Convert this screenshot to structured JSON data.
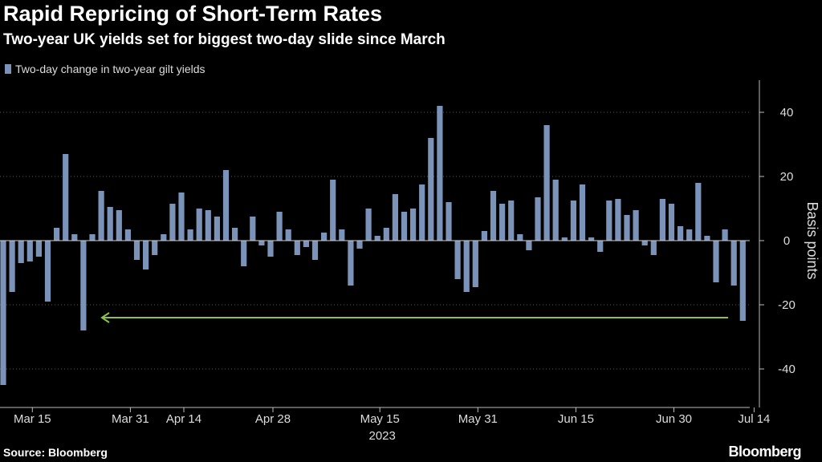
{
  "header": {
    "title": "Rapid Repricing of Short-Term Rates",
    "subtitle": "Two-year UK yields set for biggest two-day slide since March"
  },
  "footer": {
    "source": "Source: Bloomberg",
    "brand": "Bloomberg"
  },
  "chart_data": {
    "type": "bar",
    "title": "Rapid Repricing of Short-Term Rates",
    "subtitle": "Two-year UK yields set for biggest two-day slide since March",
    "series": [
      {
        "name": "Two-day change in two-year gilt yields",
        "color": "#7b93b9",
        "values": [
          -45,
          -16,
          -7,
          -6.5,
          -5,
          -19,
          4,
          27,
          2,
          -28,
          2,
          15.5,
          10.5,
          9.5,
          3.5,
          -6,
          -9,
          -4.5,
          2,
          11.5,
          15,
          3.5,
          10,
          9.5,
          7.5,
          22,
          4,
          -8,
          7.5,
          -1.5,
          -5,
          9,
          3.5,
          -4.5,
          -2,
          -6,
          2.5,
          19,
          3.5,
          -14,
          -2.5,
          10,
          1.5,
          4,
          14.5,
          9,
          10,
          17.5,
          32,
          42,
          12,
          -12,
          -16,
          -14.5,
          3,
          15.5,
          11.5,
          12.5,
          2,
          -3,
          13.5,
          36,
          19,
          1,
          12.5,
          17.5,
          1,
          -3.5,
          12.5,
          13,
          8,
          9.5,
          -1.5,
          -4.5,
          13,
          11.5,
          4.5,
          3.5,
          18,
          1.5,
          -13,
          3.5,
          -14,
          -25
        ]
      }
    ],
    "annotation": {
      "type": "arrow",
      "color": "#8bc34a",
      "value": -24,
      "from_index": 81,
      "to_index": 10
    },
    "x_ticks": [
      {
        "label": "Mar 15",
        "index": 3
      },
      {
        "label": "Mar 31",
        "index": 14
      },
      {
        "label": "Apr 14",
        "index": 20
      },
      {
        "label": "Apr 28",
        "index": 30
      },
      {
        "label": "May 15",
        "index": 42
      },
      {
        "label": "May 31",
        "index": 53
      },
      {
        "label": "Jun 15",
        "index": 64
      },
      {
        "label": "Jun 30",
        "index": 75
      },
      {
        "label": "Jul 14",
        "index": 84
      }
    ],
    "year_label": "2023",
    "y_ticks": [
      40,
      20,
      0,
      -20,
      -40
    ],
    "ylim": [
      -52,
      50
    ],
    "ylabel": "Basis points",
    "xlabel": "",
    "axis_position": "right",
    "grid": true
  }
}
